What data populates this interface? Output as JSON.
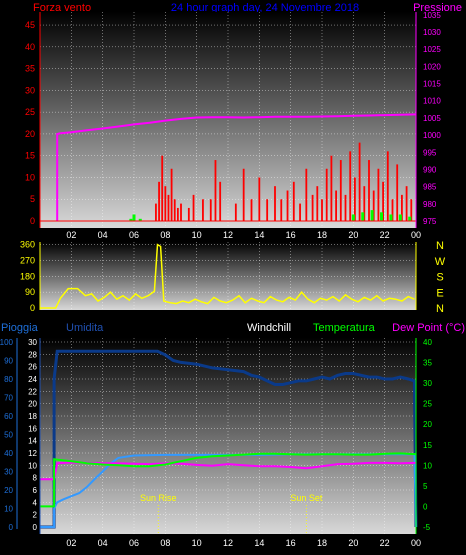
{
  "chart_data": [
    {
      "type": "bar+line",
      "header": {
        "left": "Forza vento",
        "center": "24 hour graph day, 24 Novembre 2018",
        "right": "Pressione"
      },
      "colors": {
        "wind": "#ff0000",
        "gust_green": "#00ff00",
        "pressure": "#ff00ff",
        "left_axis": "#ff0000",
        "right_axis": "#ff00ff",
        "title": "#0000ff"
      },
      "left_axis": {
        "ticks": [
          0,
          5,
          10,
          15,
          20,
          25,
          30,
          35,
          40,
          45
        ],
        "ylim": [
          0,
          48
        ]
      },
      "right_axis": {
        "ticks": [
          975,
          980,
          985,
          990,
          995,
          1000,
          1005,
          1010,
          1015,
          1020,
          1025,
          1030,
          1035
        ],
        "ylim": [
          975,
          1035.8
        ]
      },
      "x_ticks": [
        "02",
        "04",
        "06",
        "08",
        "10",
        "12",
        "14",
        "16",
        "18",
        "20",
        "22",
        "00"
      ],
      "xlim": [
        0,
        24
      ],
      "pressure": {
        "x": [
          1.1,
          1.1,
          1.3,
          2,
          3,
          4,
          5,
          6,
          7,
          8,
          9,
          10,
          11,
          12,
          13,
          14,
          15,
          16,
          17,
          18,
          19,
          20,
          21,
          22,
          23,
          24
        ],
        "y": [
          975,
          1000.3,
          1000.5,
          1000.8,
          1001.4,
          1001.9,
          1002.5,
          1003.1,
          1003.6,
          1004.2,
          1004.7,
          1005.1,
          1005.2,
          1005.2,
          1005.1,
          1005.2,
          1005.3,
          1005.3,
          1005.3,
          1005.4,
          1005.5,
          1005.6,
          1005.7,
          1005.8,
          1005.9,
          1006.0
        ]
      },
      "wind": {
        "x": [
          7.4,
          7.6,
          7.8,
          8.0,
          8.2,
          8.4,
          8.6,
          8.8,
          9.0,
          9.5,
          9.8,
          10.4,
          10.9,
          11.2,
          11.5,
          12.5,
          13.0,
          13.5,
          14.0,
          14.5,
          15.0,
          15.4,
          15.8,
          16.2,
          16.6,
          17.0,
          17.4,
          17.7,
          18.0,
          18.3,
          18.6,
          18.9,
          19.2,
          19.5,
          19.8,
          20.1,
          20.4,
          20.7,
          21.0,
          21.3,
          21.6,
          21.9,
          22.2,
          22.5,
          22.8,
          23.1,
          23.4,
          23.7
        ],
        "y": [
          4,
          9,
          15,
          8,
          6,
          12,
          5,
          3,
          4,
          3,
          6,
          5,
          5,
          14,
          9,
          4,
          12,
          5,
          10,
          5,
          8,
          5,
          7,
          9,
          4,
          12,
          6,
          8,
          5,
          12,
          15,
          7,
          14,
          6,
          16,
          10,
          18,
          8,
          14,
          7,
          12,
          9,
          16,
          5,
          13,
          6,
          8,
          5
        ]
      },
      "gust": {
        "x": [
          5.8,
          6.0,
          6.4,
          20.0,
          20.6,
          21.2,
          21.8,
          22.4,
          23.0,
          23.6
        ],
        "y": [
          0.5,
          1.5,
          0.5,
          1.5,
          2,
          2.5,
          2,
          1.5,
          1.5,
          1
        ]
      }
    },
    {
      "type": "line",
      "left_axis": {
        "ticks": [
          0,
          90,
          180,
          270,
          360
        ],
        "ylim": [
          0,
          375
        ]
      },
      "right_labels": [
        "N",
        "W",
        "S",
        "E",
        "N"
      ],
      "x_ticks": [],
      "xlim": [
        0,
        24
      ],
      "colors": {
        "direction": "#ffff00",
        "axis": "#ffff00"
      },
      "direction": {
        "x": [
          0.0,
          0.5,
          1.0,
          1.3,
          1.8,
          2.4,
          2.9,
          3.3,
          3.7,
          4.1,
          4.5,
          4.9,
          5.3,
          5.7,
          6.1,
          6.5,
          6.9,
          7.3,
          7.5,
          7.7,
          7.9,
          8.3,
          8.7,
          9.1,
          9.5,
          9.9,
          10.3,
          10.7,
          11.1,
          11.5,
          11.9,
          12.3,
          12.7,
          13.1,
          13.5,
          13.9,
          14.3,
          14.7,
          15.1,
          15.5,
          15.9,
          16.3,
          16.7,
          17.1,
          17.5,
          17.9,
          18.3,
          18.7,
          19.1,
          19.5,
          19.9,
          20.3,
          20.7,
          21.1,
          21.5,
          21.9,
          22.3,
          22.7,
          23.1,
          23.5,
          23.9
        ],
        "y": [
          0,
          0,
          0,
          55,
          110,
          110,
          70,
          80,
          40,
          60,
          90,
          50,
          70,
          45,
          80,
          55,
          70,
          95,
          360,
          350,
          40,
          30,
          25,
          40,
          30,
          50,
          35,
          25,
          60,
          40,
          30,
          45,
          70,
          30,
          55,
          40,
          30,
          65,
          45,
          35,
          60,
          45,
          90,
          50,
          30,
          55,
          45,
          65,
          40,
          75,
          50,
          35,
          60,
          45,
          70,
          40,
          55,
          50,
          40,
          65,
          50
        ]
      }
    },
    {
      "type": "line",
      "header": {
        "pioggia": "Pioggia",
        "umidita": "Umidita",
        "windchill": "Windchill",
        "temperatura": "Temperatura",
        "dewpoint": "Dew Point (°C)"
      },
      "colors": {
        "pioggia": "#1e6fd9",
        "umidita": "#2050b0",
        "windchill": "#ffffff",
        "temperatura": "#00ff00",
        "dewpoint": "#ff00ff",
        "rain": "#3399ff",
        "humidity": "#0a3a8a",
        "temperature": "#00ff00",
        "dew": "#ff00ff",
        "right_axis": "#00ff00",
        "event": "#ffff00"
      },
      "left_axis_outer": {
        "ticks": [
          0,
          10,
          20,
          30,
          40,
          50,
          60,
          70,
          80,
          90,
          100
        ],
        "ylim": [
          0,
          100
        ]
      },
      "left_axis_inner": {
        "ticks": [
          0,
          2,
          4,
          6,
          8,
          10,
          12,
          14,
          16,
          18,
          20,
          22,
          24,
          26,
          28,
          30
        ],
        "ylim": [
          0,
          30
        ]
      },
      "right_axis": {
        "ticks": [
          -5,
          0,
          5,
          10,
          15,
          20,
          25,
          30,
          35,
          40
        ],
        "ylim": [
          -5,
          40
        ]
      },
      "x_ticks": [
        "02",
        "04",
        "06",
        "08",
        "10",
        "12",
        "14",
        "16",
        "18",
        "20",
        "22",
        "00"
      ],
      "xlim": [
        0,
        24
      ],
      "events": [
        {
          "x": 7.55,
          "label": "Sun Rise"
        },
        {
          "x": 17.0,
          "label": "Sun Set"
        }
      ],
      "humidity": {
        "x": [
          0.0,
          0.5,
          0.9,
          0.9,
          1.1,
          2,
          3,
          4,
          5,
          6,
          7,
          7.5,
          8,
          8.5,
          9,
          10,
          11,
          12,
          13,
          13.5,
          14,
          14.5,
          15,
          15.5,
          16,
          16.5,
          17,
          17.5,
          18,
          18.5,
          19,
          19.5,
          20,
          20.5,
          21,
          21.5,
          22,
          22.5,
          23,
          23.5,
          23.9,
          24
        ],
        "y": [
          0,
          0,
          0,
          80,
          95,
          95,
          95,
          95,
          95,
          95,
          95,
          95,
          93,
          90,
          89,
          88,
          86,
          85,
          84,
          82,
          81,
          79,
          77,
          77,
          78,
          79,
          79,
          80,
          81,
          80,
          82,
          83,
          83,
          82,
          81,
          81,
          80,
          80,
          81,
          80,
          79,
          0
        ]
      },
      "rain": {
        "x": [
          0,
          0.9,
          0.9,
          1.1,
          1.5,
          2,
          2.5,
          3,
          3.5,
          4,
          4.5,
          5,
          6,
          8,
          10,
          12,
          14,
          16,
          18,
          20,
          22,
          23.9,
          24
        ],
        "y": [
          0,
          0,
          3.0,
          4.0,
          4.5,
          5.0,
          5.5,
          6.5,
          7.8,
          9.0,
          10.3,
          11.2,
          11.6,
          11.7,
          11.7,
          11.7,
          11.7,
          11.8,
          11.8,
          11.8,
          11.8,
          11.8,
          0
        ]
      },
      "temperature": {
        "x": [
          0.0,
          0.9,
          0.9,
          1.5,
          2,
          3,
          4,
          5,
          6,
          7,
          8,
          9,
          10,
          11,
          12,
          13,
          14,
          15,
          16,
          17,
          18,
          19,
          20,
          21,
          22,
          23,
          24
        ],
        "y": [
          0,
          0,
          11.5,
          11.2,
          11.0,
          10.5,
          10.2,
          10.0,
          9.8,
          9.8,
          10.2,
          11.0,
          11.8,
          12.2,
          12.4,
          12.6,
          12.8,
          12.8,
          12.7,
          12.6,
          12.7,
          12.7,
          12.6,
          12.6,
          12.8,
          12.9,
          12.7
        ]
      },
      "dew": {
        "x": [
          0.0,
          0.9,
          1.1,
          2,
          3,
          4,
          5,
          6,
          7,
          8,
          9,
          10,
          11,
          12,
          13,
          14,
          15,
          16,
          17,
          18,
          19,
          20,
          21,
          22,
          23,
          24
        ],
        "y": [
          6.6,
          6.6,
          10.5,
          10.7,
          10.6,
          10.5,
          10.5,
          10.4,
          10.3,
          10.5,
          10.4,
          10.1,
          9.9,
          10.3,
          10.0,
          9.8,
          9.8,
          9.6,
          9.3,
          9.8,
          10.3,
          10.4,
          10.6,
          10.6,
          10.5,
          10.6
        ]
      }
    }
  ]
}
